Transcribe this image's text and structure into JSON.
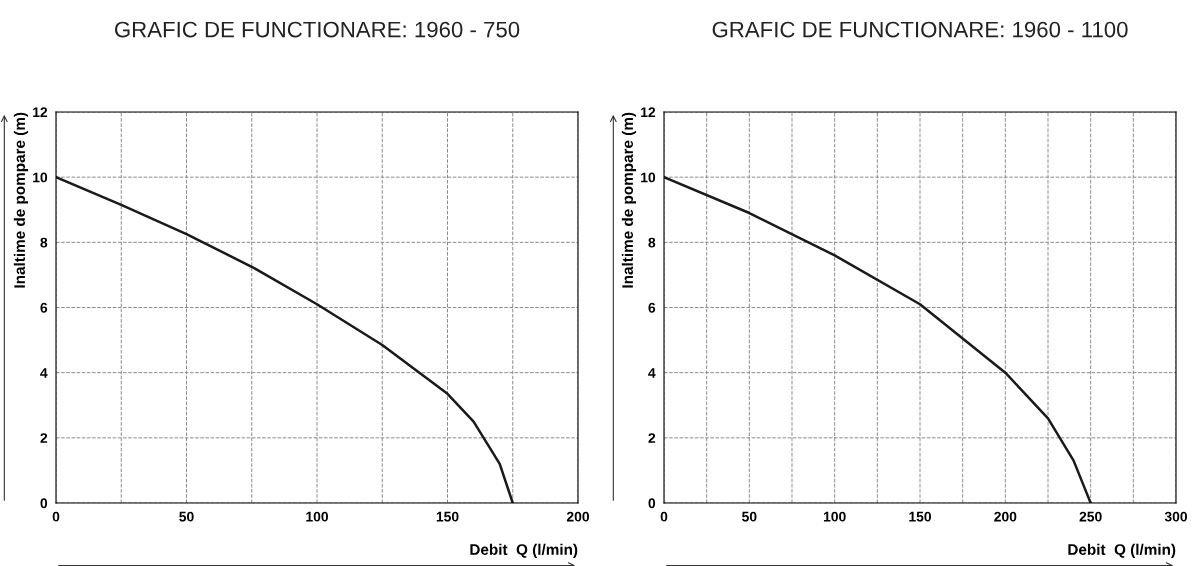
{
  "chart_data": [
    {
      "type": "line",
      "title": "GRAFIC DE FUNCTIONARE: 1960 - 750",
      "xlabel": "Debit  Q (l/min)",
      "ylabel": "Inaltime de pompare (m)",
      "x": [
        0,
        25,
        50,
        75,
        100,
        125,
        150,
        160,
        170,
        175
      ],
      "series": [
        {
          "color": "#1a1a1a",
          "values": [
            10,
            9.15,
            8.25,
            7.25,
            6.1,
            4.85,
            3.35,
            2.5,
            1.2,
            0
          ]
        }
      ],
      "xlim": [
        0,
        200
      ],
      "xticks": [
        0,
        {
          "value": 25,
          "label": null
        },
        50,
        {
          "value": 75,
          "label": null
        },
        100,
        {
          "value": 125,
          "label": null
        },
        150,
        {
          "value": 175,
          "label": null
        },
        200
      ],
      "ylim": [
        0,
        12
      ],
      "yticks": [
        0,
        2,
        4,
        6,
        8,
        10,
        12
      ],
      "grid": true,
      "line_style": "solid",
      "marker": "none"
    },
    {
      "type": "line",
      "title": "GRAFIC DE FUNCTIONARE: 1960 - 1100",
      "xlabel": "Debit  Q (l/min)",
      "ylabel": "Inaltime de pompare (m)",
      "x": [
        0,
        50,
        100,
        150,
        200,
        225,
        240,
        250
      ],
      "series": [
        {
          "color": "#1a1a1a",
          "values": [
            10,
            8.9,
            7.6,
            6.1,
            4.0,
            2.6,
            1.3,
            0
          ]
        }
      ],
      "xlim": [
        0,
        300
      ],
      "xticks": [
        0,
        {
          "value": 25,
          "label": null
        },
        50,
        {
          "value": 75,
          "label": null
        },
        100,
        {
          "value": 125,
          "label": null
        },
        150,
        {
          "value": 175,
          "label": null
        },
        200,
        {
          "value": 225,
          "label": null
        },
        250,
        {
          "value": 275,
          "label": null
        },
        300
      ],
      "ylim": [
        0,
        12
      ],
      "yticks": [
        0,
        2,
        4,
        6,
        8,
        10,
        12
      ],
      "grid": true,
      "line_style": "solid",
      "marker": "none"
    }
  ]
}
